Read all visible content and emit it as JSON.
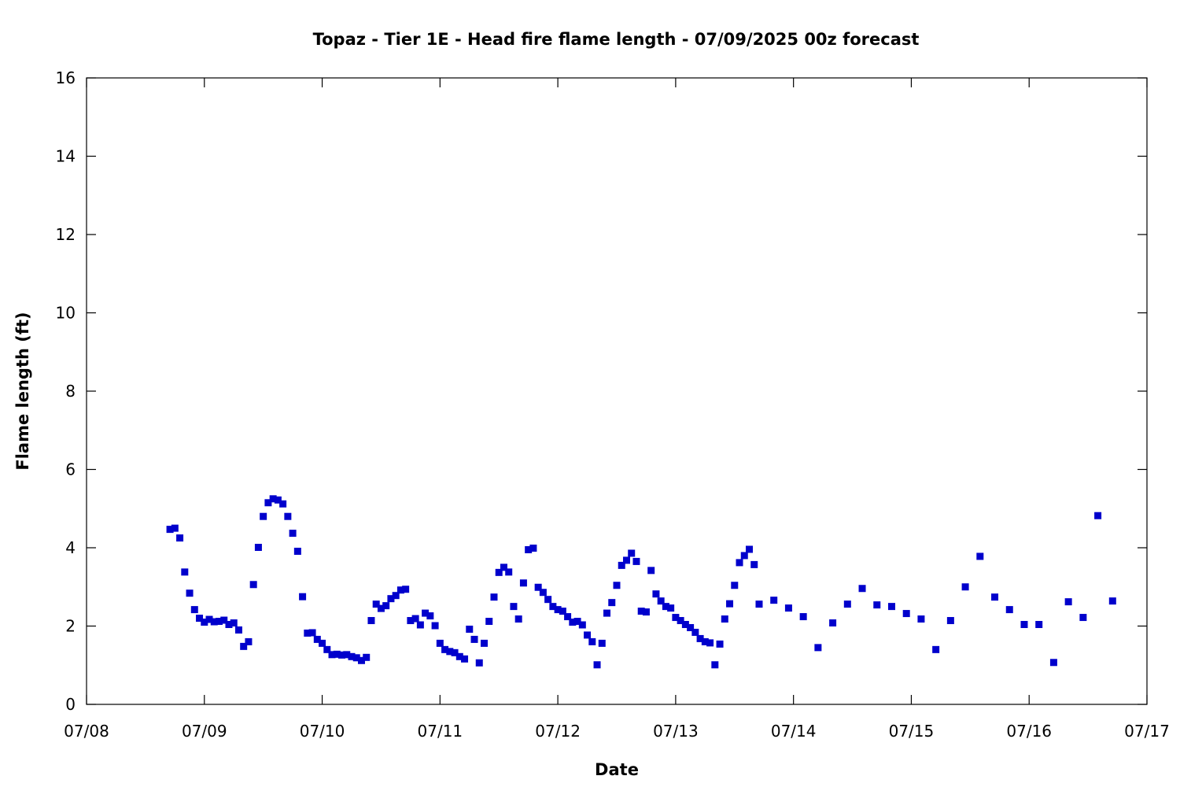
{
  "chart_data": {
    "type": "scatter",
    "title": "Topaz - Tier 1E - Head fire flame length - 07/09/2025 00z forecast",
    "xlabel": "Date",
    "ylabel": "Flame length (ft)",
    "xlim": [
      "07/08 00:00",
      "07/17 00:00"
    ],
    "ylim": [
      0,
      16
    ],
    "x_tick_labels": [
      "07/08",
      "07/09",
      "07/10",
      "07/11",
      "07/12",
      "07/13",
      "07/14",
      "07/15",
      "07/16",
      "07/17"
    ],
    "y_tick_labels": [
      "0",
      "2",
      "4",
      "6",
      "8",
      "10",
      "12",
      "14",
      "16"
    ],
    "grid": false,
    "legend": "none",
    "marker_color": "#0000cc",
    "series": [
      {
        "points": [
          [
            "07/08 17:00",
            4.47
          ],
          [
            "07/08 18:00",
            4.5
          ],
          [
            "07/08 19:00",
            4.25
          ],
          [
            "07/08 20:00",
            3.38
          ],
          [
            "07/08 21:00",
            2.84
          ],
          [
            "07/08 22:00",
            2.42
          ],
          [
            "07/08 23:00",
            2.2
          ],
          [
            "07/09 00:00",
            2.1
          ],
          [
            "07/09 01:00",
            2.17
          ],
          [
            "07/09 02:00",
            2.11
          ],
          [
            "07/09 03:00",
            2.12
          ],
          [
            "07/09 04:00",
            2.15
          ],
          [
            "07/09 05:00",
            2.04
          ],
          [
            "07/09 06:00",
            2.08
          ],
          [
            "07/09 07:00",
            1.9
          ],
          [
            "07/09 08:00",
            1.48
          ],
          [
            "07/09 09:00",
            1.6
          ],
          [
            "07/09 10:00",
            3.06
          ],
          [
            "07/09 11:00",
            4.01
          ],
          [
            "07/09 12:00",
            4.8
          ],
          [
            "07/09 13:00",
            5.15
          ],
          [
            "07/09 14:00",
            5.25
          ],
          [
            "07/09 15:00",
            5.22
          ],
          [
            "07/09 16:00",
            5.12
          ],
          [
            "07/09 17:00",
            4.8
          ],
          [
            "07/09 18:00",
            4.37
          ],
          [
            "07/09 19:00",
            3.91
          ],
          [
            "07/09 20:00",
            2.75
          ],
          [
            "07/09 21:00",
            1.82
          ],
          [
            "07/09 22:00",
            1.83
          ],
          [
            "07/09 23:00",
            1.66
          ],
          [
            "07/10 00:00",
            1.56
          ],
          [
            "07/10 01:00",
            1.4
          ],
          [
            "07/10 02:00",
            1.27
          ],
          [
            "07/10 03:00",
            1.28
          ],
          [
            "07/10 04:00",
            1.26
          ],
          [
            "07/10 05:00",
            1.27
          ],
          [
            "07/10 06:00",
            1.22
          ],
          [
            "07/10 07:00",
            1.19
          ],
          [
            "07/10 08:00",
            1.12
          ],
          [
            "07/10 09:00",
            1.2
          ],
          [
            "07/10 10:00",
            2.14
          ],
          [
            "07/10 11:00",
            2.56
          ],
          [
            "07/10 12:00",
            2.45
          ],
          [
            "07/10 13:00",
            2.52
          ],
          [
            "07/10 14:00",
            2.7
          ],
          [
            "07/10 15:00",
            2.78
          ],
          [
            "07/10 16:00",
            2.92
          ],
          [
            "07/10 17:00",
            2.94
          ],
          [
            "07/10 18:00",
            2.14
          ],
          [
            "07/10 19:00",
            2.19
          ],
          [
            "07/10 20:00",
            2.03
          ],
          [
            "07/10 21:00",
            2.33
          ],
          [
            "07/10 22:00",
            2.26
          ],
          [
            "07/10 23:00",
            2.01
          ],
          [
            "07/11 00:00",
            1.56
          ],
          [
            "07/11 01:00",
            1.4
          ],
          [
            "07/11 02:00",
            1.35
          ],
          [
            "07/11 03:00",
            1.32
          ],
          [
            "07/11 04:00",
            1.22
          ],
          [
            "07/11 05:00",
            1.16
          ],
          [
            "07/11 06:00",
            1.92
          ],
          [
            "07/11 07:00",
            1.66
          ],
          [
            "07/11 08:00",
            1.06
          ],
          [
            "07/11 09:00",
            1.56
          ],
          [
            "07/11 10:00",
            2.12
          ],
          [
            "07/11 11:00",
            2.74
          ],
          [
            "07/11 12:00",
            3.37
          ],
          [
            "07/11 13:00",
            3.5
          ],
          [
            "07/11 14:00",
            3.38
          ],
          [
            "07/11 15:00",
            2.5
          ],
          [
            "07/11 16:00",
            2.18
          ],
          [
            "07/11 17:00",
            3.1
          ],
          [
            "07/11 18:00",
            3.95
          ],
          [
            "07/11 19:00",
            3.99
          ],
          [
            "07/11 20:00",
            2.99
          ],
          [
            "07/11 21:00",
            2.86
          ],
          [
            "07/11 22:00",
            2.68
          ],
          [
            "07/11 23:00",
            2.5
          ],
          [
            "07/12 00:00",
            2.42
          ],
          [
            "07/12 01:00",
            2.38
          ],
          [
            "07/12 02:00",
            2.24
          ],
          [
            "07/12 03:00",
            2.1
          ],
          [
            "07/12 04:00",
            2.12
          ],
          [
            "07/12 05:00",
            2.03
          ],
          [
            "07/12 06:00",
            1.77
          ],
          [
            "07/12 07:00",
            1.6
          ],
          [
            "07/12 08:00",
            1.01
          ],
          [
            "07/12 09:00",
            1.56
          ],
          [
            "07/12 10:00",
            2.33
          ],
          [
            "07/12 11:00",
            2.6
          ],
          [
            "07/12 12:00",
            3.04
          ],
          [
            "07/12 13:00",
            3.55
          ],
          [
            "07/12 14:00",
            3.68
          ],
          [
            "07/12 15:00",
            3.86
          ],
          [
            "07/12 16:00",
            3.65
          ],
          [
            "07/12 17:00",
            2.38
          ],
          [
            "07/12 18:00",
            2.36
          ],
          [
            "07/12 19:00",
            3.42
          ],
          [
            "07/12 20:00",
            2.82
          ],
          [
            "07/12 21:00",
            2.64
          ],
          [
            "07/12 22:00",
            2.5
          ],
          [
            "07/12 23:00",
            2.46
          ],
          [
            "07/13 00:00",
            2.22
          ],
          [
            "07/13 01:00",
            2.14
          ],
          [
            "07/13 02:00",
            2.04
          ],
          [
            "07/13 03:00",
            1.96
          ],
          [
            "07/13 04:00",
            1.84
          ],
          [
            "07/13 05:00",
            1.68
          ],
          [
            "07/13 06:00",
            1.6
          ],
          [
            "07/13 07:00",
            1.57
          ],
          [
            "07/13 08:00",
            1.01
          ],
          [
            "07/13 09:00",
            1.54
          ],
          [
            "07/13 10:00",
            2.18
          ],
          [
            "07/13 11:00",
            2.57
          ],
          [
            "07/13 12:00",
            3.04
          ],
          [
            "07/13 13:00",
            3.62
          ],
          [
            "07/13 14:00",
            3.8
          ],
          [
            "07/13 15:00",
            3.96
          ],
          [
            "07/13 16:00",
            3.57
          ],
          [
            "07/13 17:00",
            2.56
          ],
          [
            "07/13 20:00",
            2.66
          ],
          [
            "07/13 23:00",
            2.46
          ],
          [
            "07/14 02:00",
            2.24
          ],
          [
            "07/14 05:00",
            1.45
          ],
          [
            "07/14 08:00",
            2.08
          ],
          [
            "07/14 11:00",
            2.56
          ],
          [
            "07/14 14:00",
            2.96
          ],
          [
            "07/14 17:00",
            2.54
          ],
          [
            "07/14 20:00",
            2.5
          ],
          [
            "07/14 23:00",
            2.32
          ],
          [
            "07/15 02:00",
            2.18
          ],
          [
            "07/15 05:00",
            1.4
          ],
          [
            "07/15 08:00",
            2.14
          ],
          [
            "07/15 11:00",
            3.0
          ],
          [
            "07/15 14:00",
            3.78
          ],
          [
            "07/15 17:00",
            2.74
          ],
          [
            "07/15 20:00",
            2.42
          ],
          [
            "07/15 23:00",
            2.04
          ],
          [
            "07/16 02:00",
            2.04
          ],
          [
            "07/16 05:00",
            1.07
          ],
          [
            "07/16 08:00",
            2.62
          ],
          [
            "07/16 11:00",
            2.22
          ],
          [
            "07/16 14:00",
            4.82
          ],
          [
            "07/16 17:00",
            2.64
          ]
        ]
      }
    ]
  }
}
